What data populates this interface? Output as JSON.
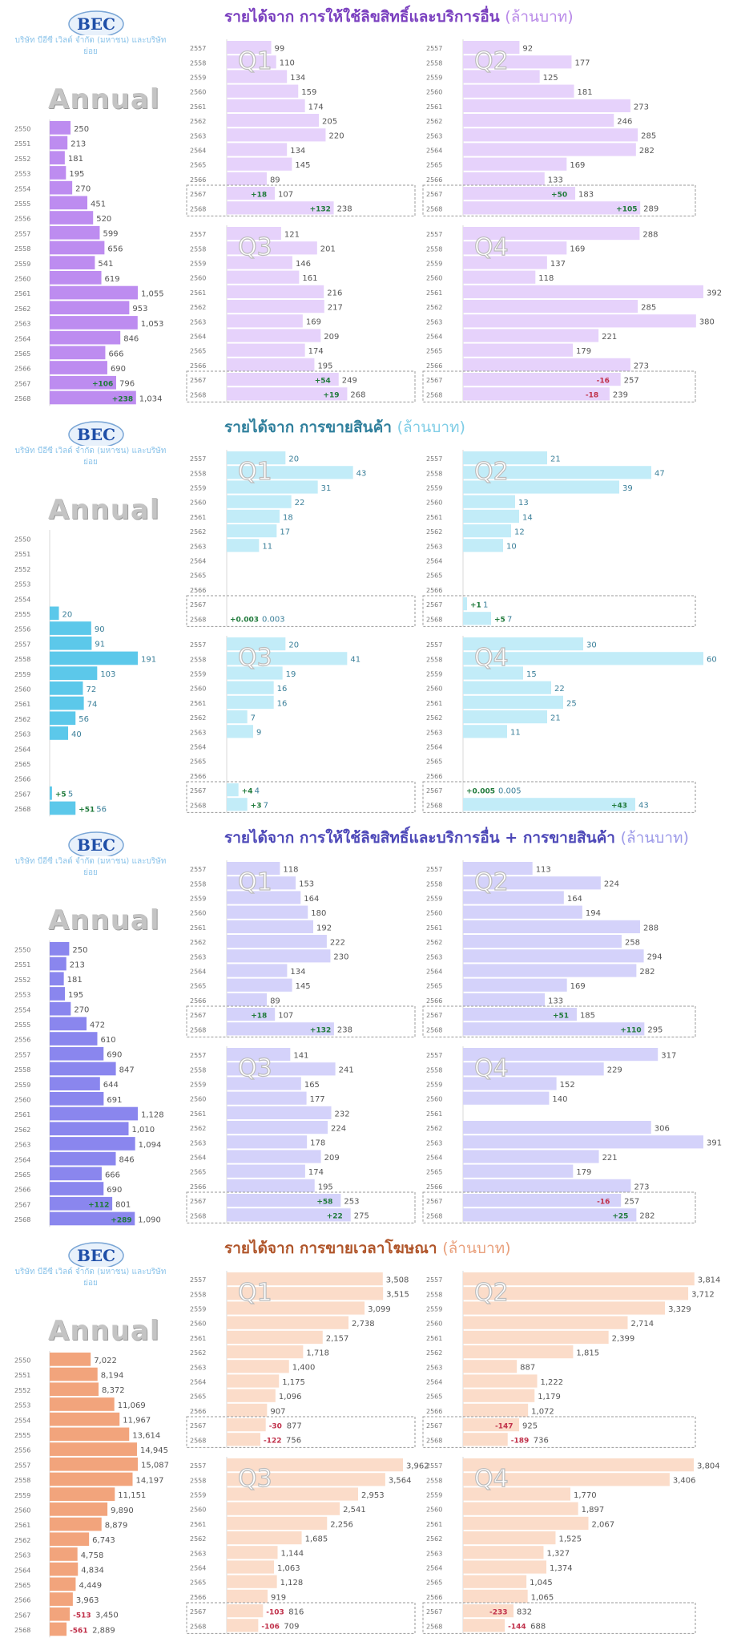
{
  "company": "บริษัท บีอีซี เวิลด์ จำกัด (มหาชน) และบริษัทย่อย",
  "annual_label": "Annual",
  "logo_text": "BEC",
  "years_annual": [
    "2550",
    "2551",
    "2552",
    "2553",
    "2554",
    "2555",
    "2556",
    "2557",
    "2558",
    "2559",
    "2560",
    "2561",
    "2562",
    "2563",
    "2564",
    "2565",
    "2566",
    "2567",
    "2568"
  ],
  "years_quarter": [
    "2557",
    "2558",
    "2559",
    "2560",
    "2561",
    "2562",
    "2563",
    "2564",
    "2565",
    "2566",
    "2567",
    "2568"
  ],
  "chart_data": [
    {
      "type": "bar",
      "title_prefix": "รายได้จาก",
      "title": "การให้ใช้ลิขสิทธิ์และบริการอื่น",
      "unit": "(ล้านบาท)",
      "color": "#bd8cf0",
      "light": "#e6d2fb",
      "title_color": "#7a3fbf",
      "unit_color": "#b98ae8",
      "label_color": "#555555",
      "annual": {
        "values": [
          "250",
          "213",
          "181",
          "195",
          "270",
          "451",
          "520",
          "599",
          "656",
          "541",
          "619",
          "1,055",
          "953",
          "1,053",
          "846",
          "666",
          "690",
          "796",
          "1,034"
        ],
        "changes": {
          "17": "+106",
          "18": "+238"
        }
      },
      "quarters": [
        {
          "name": "Q1",
          "values": [
            "99",
            "110",
            "134",
            "159",
            "174",
            "205",
            "220",
            "134",
            "145",
            "89",
            "107",
            "238"
          ],
          "changes": {
            "10": "+18",
            "11": "+132"
          }
        },
        {
          "name": "Q2",
          "values": [
            "92",
            "177",
            "125",
            "181",
            "273",
            "246",
            "285",
            "282",
            "169",
            "133",
            "183",
            "289"
          ],
          "changes": {
            "10": "+50",
            "11": "+105"
          }
        },
        {
          "name": "Q3",
          "values": [
            "121",
            "201",
            "146",
            "161",
            "216",
            "217",
            "169",
            "209",
            "174",
            "195",
            "249",
            "268"
          ],
          "changes": {
            "10": "+54",
            "11": "+19"
          }
        },
        {
          "name": "Q4",
          "values": [
            "288",
            "169",
            "137",
            "118",
            "392",
            "285",
            "380",
            "221",
            "179",
            "273",
            "257",
            "239"
          ],
          "changes": {
            "10": "-16",
            "11": "-18"
          }
        }
      ]
    },
    {
      "type": "bar",
      "title_prefix": "รายได้จาก",
      "title": "การขายสินค้า",
      "unit": "(ล้านบาท)",
      "color": "#5cc8ea",
      "light": "#c2ecf8",
      "title_color": "#2f7f9c",
      "unit_color": "#7fcde6",
      "label_color": "#3a7f99",
      "annual": {
        "values": [
          "",
          "",
          "",
          "",
          "",
          "20",
          "90",
          "91",
          "191",
          "103",
          "72",
          "74",
          "56",
          "40",
          "",
          "",
          "",
          "5",
          "56"
        ],
        "changes": {
          "17": "+5",
          "18": "+51"
        }
      },
      "quarters": [
        {
          "name": "Q1",
          "values": [
            "20",
            "43",
            "31",
            "22",
            "18",
            "17",
            "11",
            "",
            "",
            "",
            "",
            "0.003"
          ],
          "changes": {
            "11": "+0.003"
          }
        },
        {
          "name": "Q2",
          "values": [
            "21",
            "47",
            "39",
            "13",
            "14",
            "12",
            "10",
            "",
            "",
            "",
            "1",
            "7"
          ],
          "changes": {
            "10": "+1",
            "11": "+5"
          }
        },
        {
          "name": "Q3",
          "values": [
            "20",
            "41",
            "19",
            "16",
            "16",
            "7",
            "9",
            "",
            "",
            "",
            "4",
            "7"
          ],
          "changes": {
            "10": "+4",
            "11": "+3"
          }
        },
        {
          "name": "Q4",
          "values": [
            "30",
            "60",
            "15",
            "22",
            "25",
            "21",
            "11",
            "",
            "",
            "",
            "0.005",
            "43"
          ],
          "changes": {
            "10": "+0.005",
            "11": "+43"
          }
        }
      ]
    },
    {
      "type": "bar",
      "title_prefix": "รายได้จาก",
      "title": "การให้ใช้ลิขสิทธิ์และบริการอื่น + การขายสินค้า",
      "unit": "(ล้านบาท)",
      "color": "#8a86ee",
      "light": "#d4d2fa",
      "title_color": "#4d48b8",
      "unit_color": "#9c99e8",
      "label_color": "#555555",
      "annual": {
        "values": [
          "250",
          "213",
          "181",
          "195",
          "270",
          "472",
          "610",
          "690",
          "847",
          "644",
          "691",
          "1,128",
          "1,010",
          "1,094",
          "846",
          "666",
          "690",
          "801",
          "1,090"
        ],
        "changes": {
          "17": "+112",
          "18": "+289"
        }
      },
      "quarters": [
        {
          "name": "Q1",
          "values": [
            "118",
            "153",
            "164",
            "180",
            "192",
            "222",
            "230",
            "134",
            "145",
            "89",
            "107",
            "238"
          ],
          "changes": {
            "10": "+18",
            "11": "+132"
          }
        },
        {
          "name": "Q2",
          "values": [
            "113",
            "224",
            "164",
            "194",
            "288",
            "258",
            "294",
            "282",
            "169",
            "133",
            "185",
            "295"
          ],
          "changes": {
            "10": "+51",
            "11": "+110"
          }
        },
        {
          "name": "Q3",
          "values": [
            "141",
            "241",
            "165",
            "177",
            "232",
            "224",
            "178",
            "209",
            "174",
            "195",
            "253",
            "275"
          ],
          "changes": {
            "10": "+58",
            "11": "+22"
          }
        },
        {
          "name": "Q4",
          "values": [
            "317",
            "229",
            "152",
            "140",
            "",
            "306",
            "391",
            "221",
            "179",
            "273",
            "257",
            "282"
          ],
          "changes": {
            "10": "-16",
            "11": "+25"
          }
        }
      ]
    },
    {
      "type": "bar",
      "title_prefix": "รายได้จาก",
      "title": "การขายเวลาโฆษณา",
      "unit": "(ล้านบาท)",
      "color": "#f2a47c",
      "light": "#fbdcc9",
      "title_color": "#b0552a",
      "unit_color": "#e9a07c",
      "label_color": "#555555",
      "annual": {
        "values": [
          "7,022",
          "8,194",
          "8,372",
          "11,069",
          "11,967",
          "13,614",
          "14,945",
          "15,087",
          "14,197",
          "11,151",
          "9,890",
          "8,879",
          "6,743",
          "4,758",
          "4,834",
          "4,449",
          "3,963",
          "3,450",
          "2,889"
        ],
        "changes": {
          "17": "-513",
          "18": "-561"
        }
      },
      "quarters": [
        {
          "name": "Q1",
          "values": [
            "3,508",
            "3,515",
            "3,099",
            "2,738",
            "2,157",
            "1,718",
            "1,400",
            "1,175",
            "1,096",
            "907",
            "877",
            "756"
          ],
          "changes": {
            "10": "-30",
            "11": "-122"
          }
        },
        {
          "name": "Q2",
          "values": [
            "3,814",
            "3,712",
            "3,329",
            "2,714",
            "2,399",
            "1,815",
            "887",
            "1,222",
            "1,179",
            "1,072",
            "925",
            "736"
          ],
          "changes": {
            "10": "-147",
            "11": "-189"
          }
        },
        {
          "name": "Q3",
          "values": [
            "3,962",
            "3,564",
            "2,953",
            "2,541",
            "2,256",
            "1,685",
            "1,144",
            "1,063",
            "1,128",
            "919",
            "816",
            "709"
          ],
          "changes": {
            "10": "-103",
            "11": "-106"
          }
        },
        {
          "name": "Q4",
          "values": [
            "3,804",
            "3,406",
            "1,770",
            "1,897",
            "2,067",
            "1,525",
            "1,327",
            "1,374",
            "1,045",
            "1,065",
            "832",
            "688"
          ],
          "changes": {
            "10": "-233",
            "11": "-144"
          }
        }
      ]
    }
  ]
}
